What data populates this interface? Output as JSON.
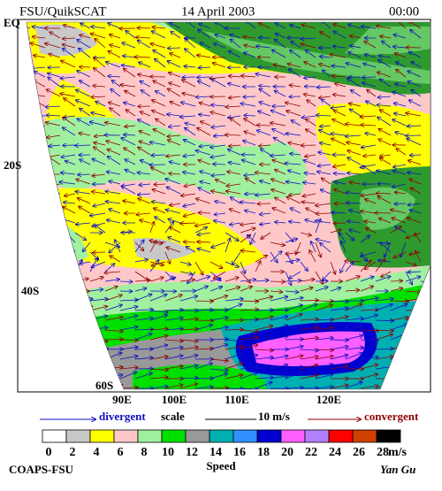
{
  "header": {
    "left": "FSU/QuikSCAT",
    "center": "14 April 2003",
    "right": "00:00"
  },
  "map": {
    "lat_labels": [
      "EQ",
      "20S",
      "40S",
      "60S"
    ],
    "lon_labels": [
      "90E",
      "100E",
      "110E",
      "120E"
    ]
  },
  "legend": {
    "divergent": "divergent",
    "scale": "scale",
    "scale_value": "10 m/s",
    "convergent": "convergent"
  },
  "colorbar": {
    "ticks": [
      0,
      2,
      4,
      6,
      8,
      10,
      12,
      14,
      16,
      18,
      20,
      22,
      24,
      26,
      28
    ],
    "colors": [
      "#ffffff",
      "#c8c8c8",
      "#ffff00",
      "#ffc8c8",
      "#a0f0a0",
      "#00e000",
      "#999999",
      "#00b0b0",
      "#3090ff",
      "#0000d0",
      "#ff60ff",
      "#b080ff",
      "#ff0000",
      "#d04000",
      "#000000"
    ],
    "unit": "m/s",
    "title": "Speed"
  },
  "footer": {
    "left": "COAPS-FSU",
    "right": "Yan Gu"
  }
}
